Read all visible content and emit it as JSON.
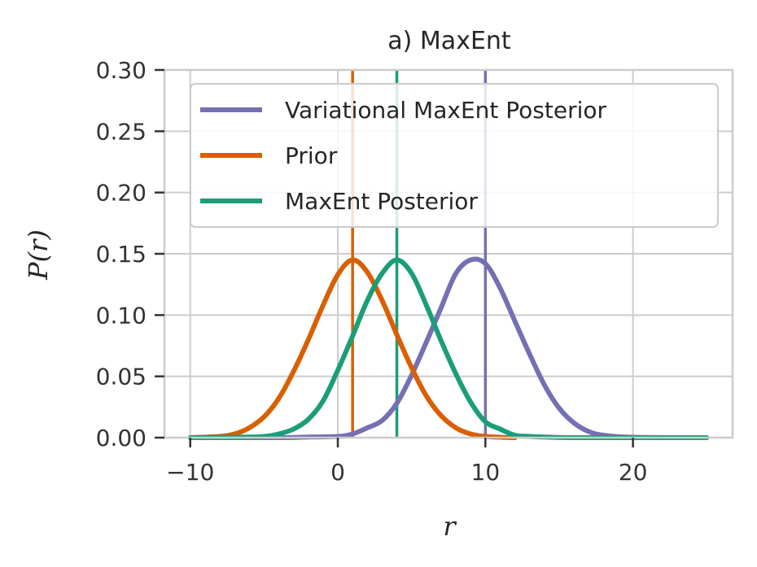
{
  "chart_data": {
    "type": "line",
    "title": "a) MaxEnt",
    "xlabel": "r",
    "ylabel": "P(r)",
    "xlim": [
      -11.75,
      26.75
    ],
    "ylim": [
      0,
      0.3
    ],
    "xticks": [
      -10,
      0,
      10,
      20
    ],
    "xtick_labels": [
      "−10",
      "0",
      "10",
      "20"
    ],
    "yticks": [
      0,
      0.05,
      0.1,
      0.15,
      0.2,
      0.25,
      0.3
    ],
    "ytick_labels": [
      "0.00",
      "0.05",
      "0.10",
      "0.15",
      "0.20",
      "0.25",
      "0.30"
    ],
    "grid": true,
    "legend_position": "top-right",
    "series": [
      {
        "name": "Variational MaxEnt Posterior",
        "color": "#7570b3",
        "x": [
          -10,
          -4,
          -2,
          0,
          1,
          2,
          3,
          4,
          5,
          6,
          7,
          8,
          9,
          10,
          11,
          12,
          13,
          14,
          15,
          16,
          17,
          18,
          20,
          25
        ],
        "y": [
          0,
          0,
          0.0005,
          0.001,
          0.003,
          0.008,
          0.014,
          0.028,
          0.051,
          0.078,
          0.106,
          0.134,
          0.145,
          0.142,
          0.122,
          0.095,
          0.068,
          0.043,
          0.024,
          0.012,
          0.005,
          0.002,
          0.0003,
          0
        ]
      },
      {
        "name": "Prior",
        "color": "#d95f02",
        "x": [
          -10,
          -8,
          -7,
          -6,
          -5,
          -4,
          -3,
          -2,
          -1,
          0,
          1,
          2,
          3,
          4,
          5,
          6,
          7,
          8,
          9,
          10,
          11,
          12
        ],
        "y": [
          0,
          0.001,
          0.003,
          0.008,
          0.017,
          0.032,
          0.054,
          0.08,
          0.108,
          0.133,
          0.145,
          0.135,
          0.112,
          0.084,
          0.057,
          0.034,
          0.018,
          0.008,
          0.003,
          0.001,
          0.0003,
          0
        ]
      },
      {
        "name": "MaxEnt Posterior",
        "color": "#1b9e77",
        "x": [
          -10,
          -6,
          -5,
          -4,
          -3,
          -2,
          -1,
          0,
          1,
          2,
          3,
          4,
          5,
          6,
          7,
          8,
          9,
          10,
          11,
          12,
          13,
          14,
          16,
          20,
          25
        ],
        "y": [
          0,
          0.0005,
          0.001,
          0.003,
          0.007,
          0.015,
          0.03,
          0.055,
          0.083,
          0.112,
          0.134,
          0.145,
          0.134,
          0.108,
          0.079,
          0.052,
          0.029,
          0.013,
          0.007,
          0.002,
          0.001,
          0.0005,
          0,
          0,
          0
        ]
      }
    ],
    "vertical_lines": [
      {
        "x": 1,
        "color": "#d95f02"
      },
      {
        "x": 4,
        "color": "#1b9e77"
      },
      {
        "x": 10,
        "color": "#7570b3"
      }
    ]
  }
}
